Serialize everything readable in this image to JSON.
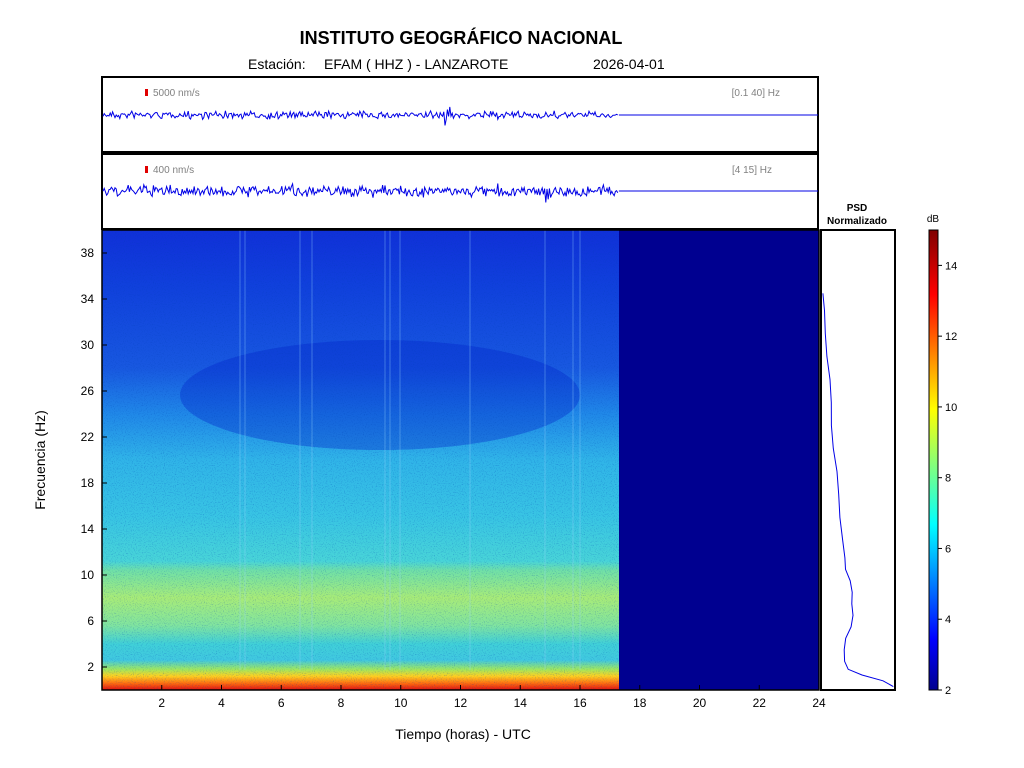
{
  "header": {
    "title": "INSTITUTO GEOGRÁFICO NACIONAL",
    "station_prefix": "Estación:",
    "station": "EFAM ( HHZ ) - LANZAROTE",
    "date": "2026-04-01"
  },
  "colors": {
    "trace": "#0000e6",
    "scale_bar": "#e00000",
    "spectrogram_fill": "#000090"
  },
  "chart_data": [
    {
      "type": "line",
      "name": "trace-broadband",
      "scale_label": "5000 nm/s",
      "filter_label": "[0.1 40] Hz",
      "data_end_hours": 17.3,
      "x_range": [
        0,
        24
      ]
    },
    {
      "type": "line",
      "name": "trace-filtered",
      "scale_label": "400 nm/s",
      "filter_label": "[4 15] Hz",
      "data_end_hours": 17.3,
      "x_range": [
        0,
        24
      ]
    },
    {
      "type": "heatmap",
      "xlabel": "Tiempo (horas) - UTC",
      "ylabel": "Frecuencia  (Hz)",
      "xlim": [
        0,
        24
      ],
      "ylim": [
        0,
        40
      ],
      "xticks": [
        "2",
        "4",
        "6",
        "8",
        "10",
        "12",
        "14",
        "16",
        "18",
        "20",
        "22",
        "24"
      ],
      "yticks": [
        "2",
        "6",
        "10",
        "14",
        "18",
        "22",
        "26",
        "30",
        "34",
        "38"
      ],
      "data_end_hours": 17.3,
      "profile_db": [
        {
          "f": 0,
          "db": 14.5
        },
        {
          "f": 1,
          "db": 13
        },
        {
          "f": 2,
          "db": 10
        },
        {
          "f": 4,
          "db": 8
        },
        {
          "f": 6,
          "db": 8.5
        },
        {
          "f": 8,
          "db": 9
        },
        {
          "f": 10,
          "db": 8.8
        },
        {
          "f": 12,
          "db": 7.5
        },
        {
          "f": 14,
          "db": 7
        },
        {
          "f": 18,
          "db": 6.2
        },
        {
          "f": 22,
          "db": 5
        },
        {
          "f": 26,
          "db": 4.3
        },
        {
          "f": 30,
          "db": 3.6
        },
        {
          "f": 34,
          "db": 3.8
        },
        {
          "f": 38,
          "db": 4.2
        },
        {
          "f": 40,
          "db": 4.4
        }
      ]
    },
    {
      "type": "line",
      "name": "psd-normalizado",
      "title_line1": "PSD",
      "title_line2": "Normalizado",
      "points": [
        {
          "f": 0.3,
          "v": 1.0
        },
        {
          "f": 0.8,
          "v": 0.85
        },
        {
          "f": 1.3,
          "v": 0.55
        },
        {
          "f": 1.8,
          "v": 0.35
        },
        {
          "f": 2.5,
          "v": 0.3
        },
        {
          "f": 3.5,
          "v": 0.3
        },
        {
          "f": 4.5,
          "v": 0.34
        },
        {
          "f": 5.5,
          "v": 0.4
        },
        {
          "f": 6.5,
          "v": 0.42
        },
        {
          "f": 7.5,
          "v": 0.42
        },
        {
          "f": 8.5,
          "v": 0.41
        },
        {
          "f": 9.5,
          "v": 0.38
        },
        {
          "f": 10.5,
          "v": 0.34
        },
        {
          "f": 11.5,
          "v": 0.31
        },
        {
          "f": 13,
          "v": 0.28
        },
        {
          "f": 15,
          "v": 0.25
        },
        {
          "f": 17,
          "v": 0.22
        },
        {
          "f": 19,
          "v": 0.2
        },
        {
          "f": 21,
          "v": 0.17
        },
        {
          "f": 23,
          "v": 0.14
        },
        {
          "f": 25,
          "v": 0.12
        },
        {
          "f": 27,
          "v": 0.1
        },
        {
          "f": 29,
          "v": 0.08
        },
        {
          "f": 31,
          "v": 0.05
        },
        {
          "f": 33,
          "v": 0.03
        },
        {
          "f": 34.5,
          "v": 0.01
        }
      ]
    },
    {
      "type": "heatmap",
      "name": "colorbar",
      "unit": "dB",
      "range": [
        2,
        15
      ],
      "ticks": [
        "2",
        "4",
        "6",
        "8",
        "10",
        "12",
        "14"
      ]
    }
  ]
}
